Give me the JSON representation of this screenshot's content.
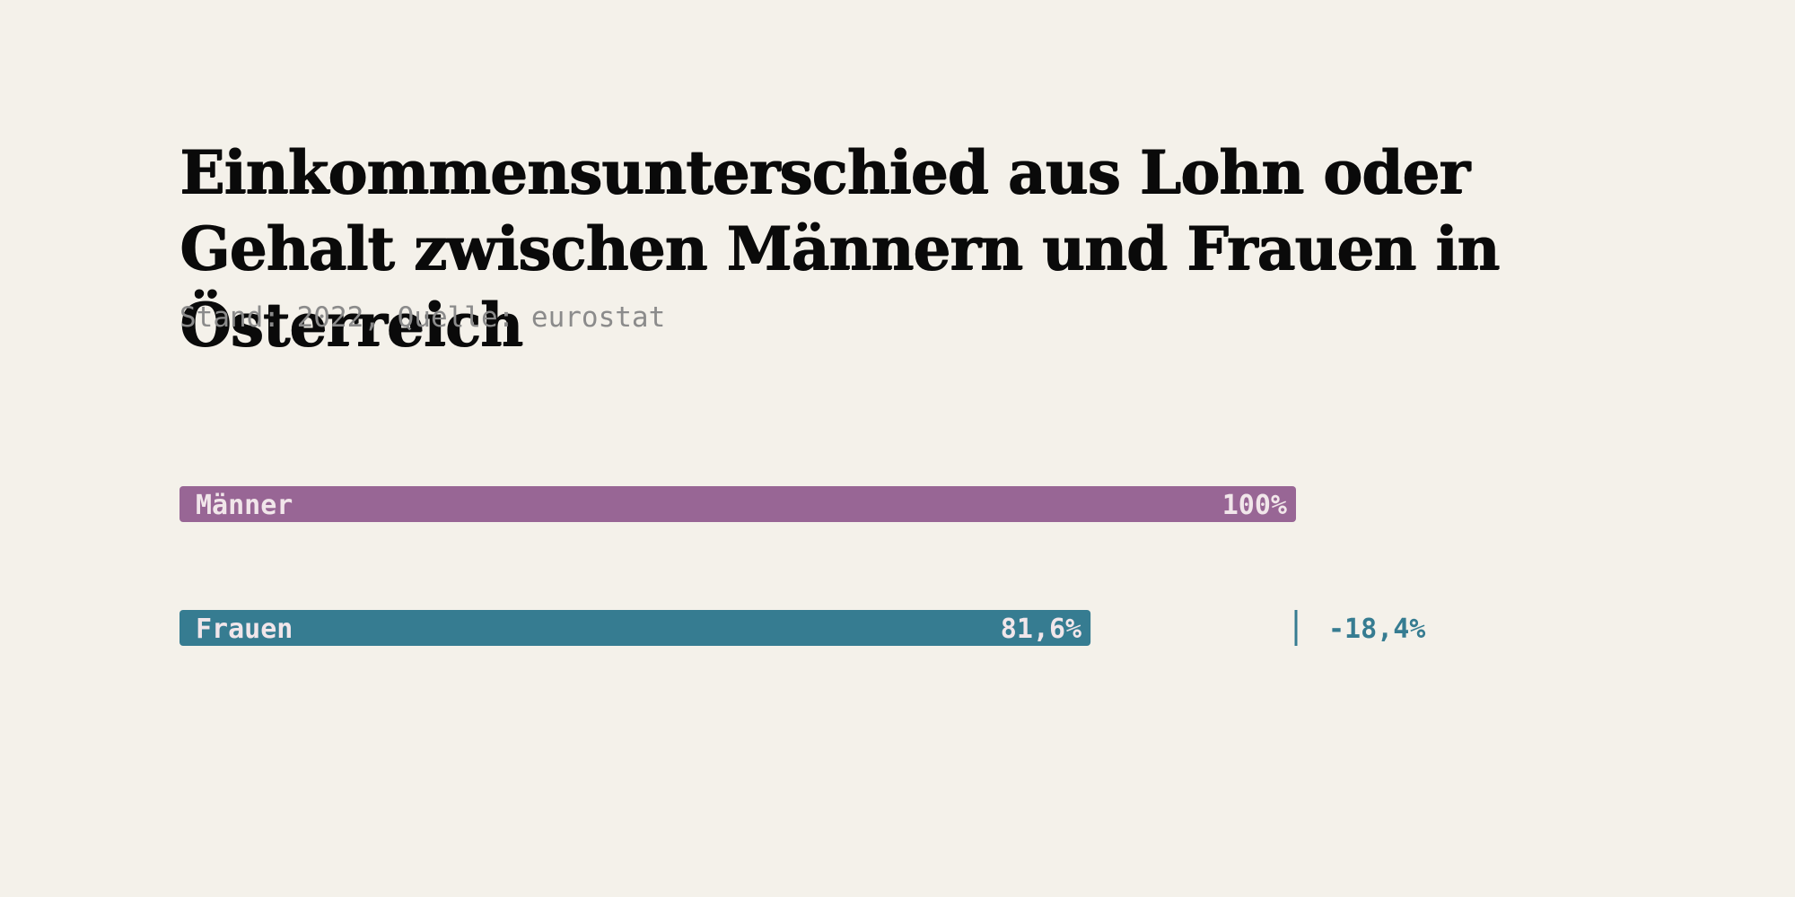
{
  "chart_data": {
    "type": "bar",
    "orientation": "horizontal",
    "title": "Einkommensunterschied aus Lohn oder Gehalt zwischen Männern und Frauen in Österreich",
    "subtitle": "Stand: 2022, Quelle: eurostat",
    "xlim": [
      0,
      100
    ],
    "unit": "%",
    "categories": [
      "Männer",
      "Frauen"
    ],
    "values": [
      100,
      81.6
    ],
    "value_labels": [
      "100%",
      "81,6%"
    ],
    "colors": [
      "#986695",
      "#367c91"
    ],
    "difference": {
      "value": -18.4,
      "label": "-18,4%",
      "color": "#367c91"
    },
    "label_color": "#f1e6ea",
    "grid": false,
    "legend": "none"
  }
}
